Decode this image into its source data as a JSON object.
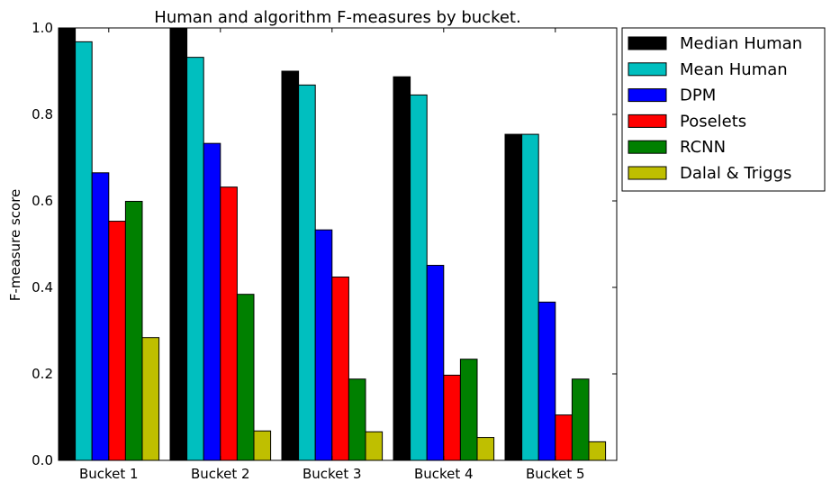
{
  "chart_data": {
    "type": "bar",
    "title": "Human and algorithm F-measures by bucket.",
    "xlabel": "",
    "ylabel": "F-measure score",
    "ylim": [
      0,
      1
    ],
    "yticks": [
      "0.0",
      "0.2",
      "0.4",
      "0.6",
      "0.8",
      "1.0"
    ],
    "categories": [
      "Bucket 1",
      "Bucket 2",
      "Bucket 3",
      "Bucket 4",
      "Bucket 5"
    ],
    "legend_position": "outside-right",
    "grid": false,
    "series": [
      {
        "name": "Median Human",
        "color": "#000000",
        "values": [
          1.0,
          1.0,
          0.9,
          0.887,
          0.754
        ]
      },
      {
        "name": "Mean Human",
        "color": "#00bfbf",
        "values": [
          0.968,
          0.932,
          0.868,
          0.845,
          0.754
        ]
      },
      {
        "name": "DPM",
        "color": "#0000ff",
        "values": [
          0.665,
          0.733,
          0.533,
          0.451,
          0.366
        ]
      },
      {
        "name": "Poselets",
        "color": "#ff0000",
        "values": [
          0.553,
          0.632,
          0.424,
          0.197,
          0.105
        ]
      },
      {
        "name": "RCNN",
        "color": "#008000",
        "values": [
          0.599,
          0.384,
          0.188,
          0.234,
          0.188
        ]
      },
      {
        "name": "Dalal & Triggs",
        "color": "#bfbf00",
        "values": [
          0.284,
          0.068,
          0.066,
          0.053,
          0.043
        ]
      }
    ]
  }
}
